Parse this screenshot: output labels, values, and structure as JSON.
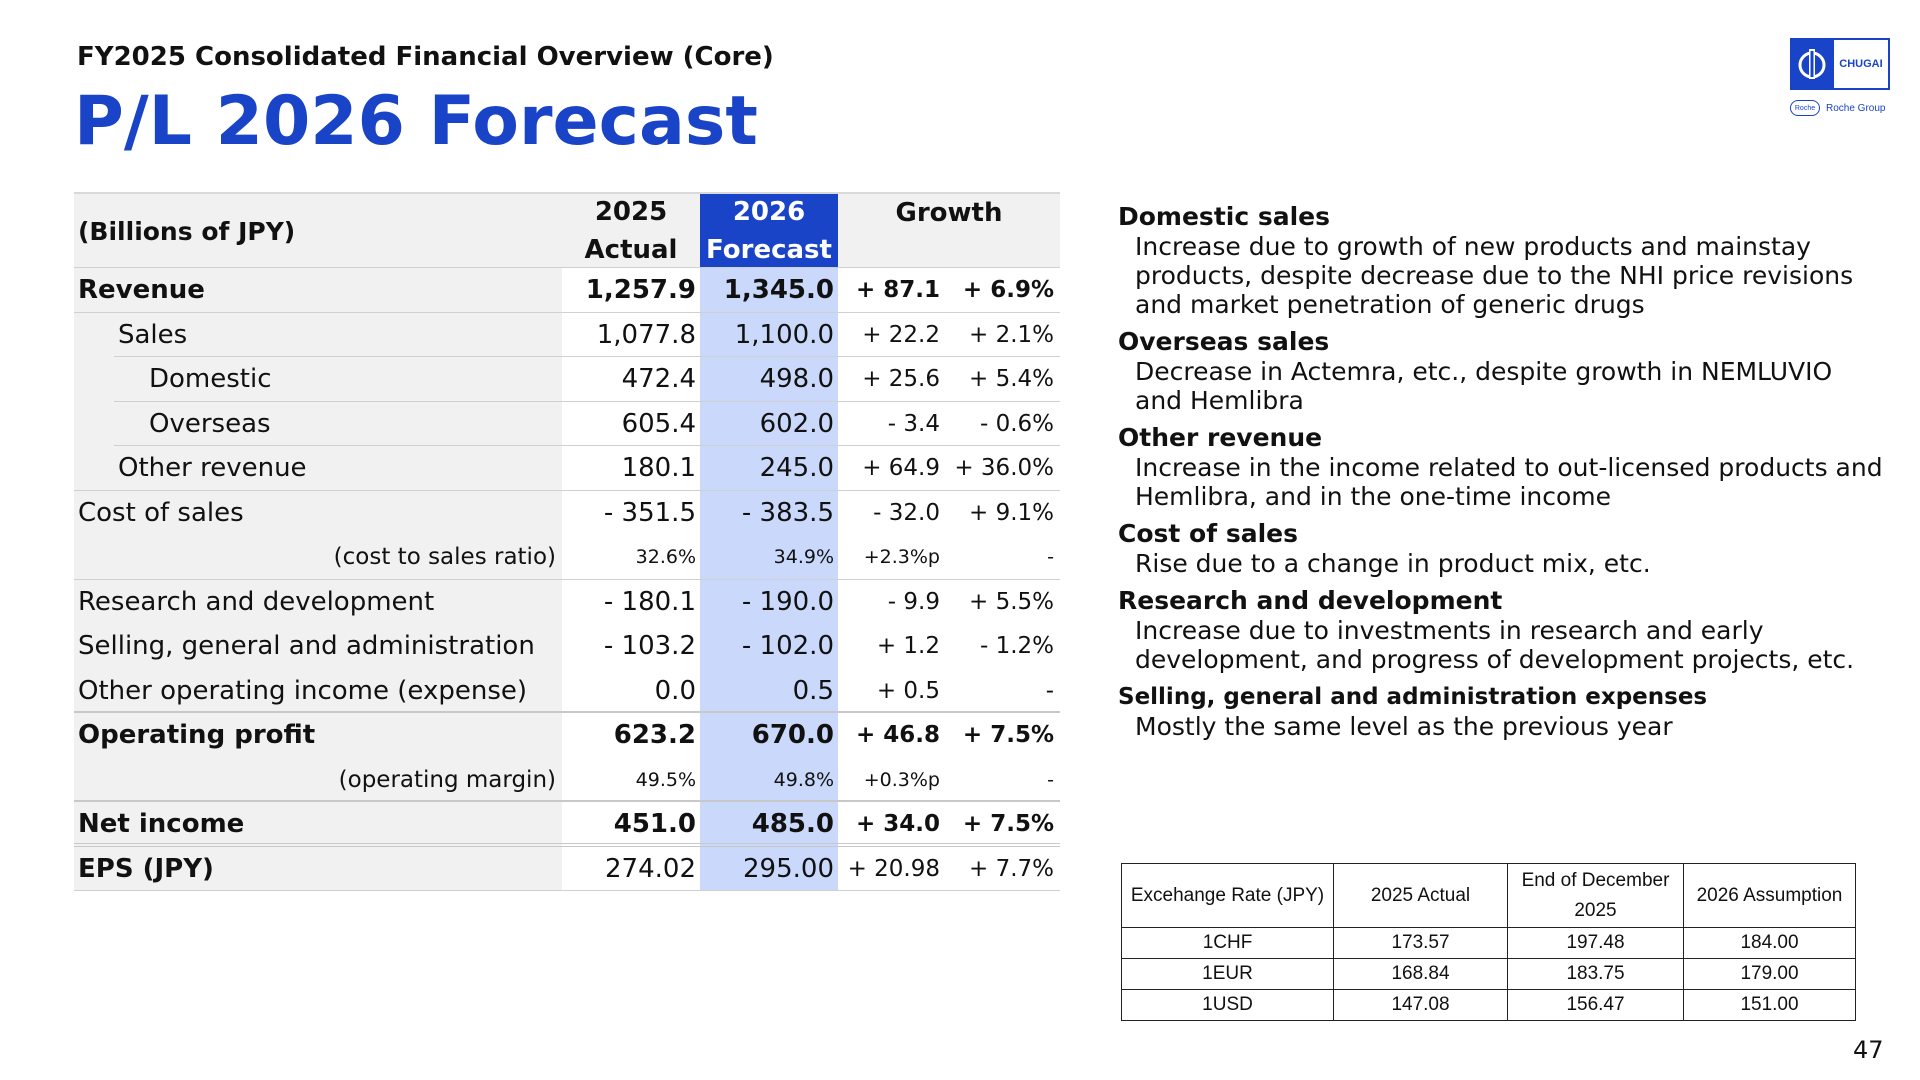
{
  "header": {
    "subtitle": "FY2025 Consolidated Financial Overview (Core)",
    "title": "P/L 2026 Forecast"
  },
  "logo": {
    "brand": "CHUGAI",
    "roche_mark": "Roche",
    "group": "Roche Group",
    "color": "#1a44c8"
  },
  "pl_table": {
    "unit_label": "(Billions of JPY)",
    "col_actual_line1": "2025",
    "col_actual_line2": "Actual",
    "col_forecast_line1": "2026",
    "col_forecast_line2": "Forecast",
    "col_growth": "Growth",
    "rows": [
      {
        "label": "Revenue",
        "actual": "1,257.9",
        "forecast": "1,345.0",
        "growth_abs": "+ 87.1",
        "growth_pct": "+ 6.9%"
      },
      {
        "label": "Sales",
        "actual": "1,077.8",
        "forecast": "1,100.0",
        "growth_abs": "+ 22.2",
        "growth_pct": "+ 2.1%"
      },
      {
        "label": "Domestic",
        "actual": "472.4",
        "forecast": "498.0",
        "growth_abs": "+ 25.6",
        "growth_pct": "+ 5.4%"
      },
      {
        "label": "Overseas",
        "actual": "605.4",
        "forecast": "602.0",
        "growth_abs": "- 3.4",
        "growth_pct": "- 0.6%"
      },
      {
        "label": "Other revenue",
        "actual": "180.1",
        "forecast": "245.0",
        "growth_abs": "+ 64.9",
        "growth_pct": "+ 36.0%"
      },
      {
        "label": "Cost of sales",
        "actual": "- 351.5",
        "forecast": "- 383.5",
        "growth_abs": "- 32.0",
        "growth_pct": "+ 9.1%"
      },
      {
        "label": "(cost to sales ratio)",
        "actual": "32.6%",
        "forecast": "34.9%",
        "growth_abs": "+2.3%p",
        "growth_pct": "-"
      },
      {
        "label": "Research and development",
        "actual": "- 180.1",
        "forecast": "- 190.0",
        "growth_abs": "- 9.9",
        "growth_pct": "+ 5.5%"
      },
      {
        "label": "Selling, general and administration",
        "actual": "- 103.2",
        "forecast": "- 102.0",
        "growth_abs": "+ 1.2",
        "growth_pct": "- 1.2%"
      },
      {
        "label": "Other operating income (expense)",
        "actual": "0.0",
        "forecast": "0.5",
        "growth_abs": "+ 0.5",
        "growth_pct": "-"
      },
      {
        "label": "Operating profit",
        "actual": "623.2",
        "forecast": "670.0",
        "growth_abs": "+ 46.8",
        "growth_pct": "+ 7.5%"
      },
      {
        "label": "(operating margin)",
        "actual": "49.5%",
        "forecast": "49.8%",
        "growth_abs": "+0.3%p",
        "growth_pct": "-"
      },
      {
        "label": "Net income",
        "actual": "451.0",
        "forecast": "485.0",
        "growth_abs": "+ 34.0",
        "growth_pct": "+ 7.5%"
      },
      {
        "label": "EPS (JPY)",
        "actual": "274.02",
        "forecast": "295.00",
        "growth_abs": "+ 20.98",
        "growth_pct": "+ 7.7%"
      }
    ]
  },
  "notes": [
    {
      "heading": "Domestic sales",
      "lines": [
        "Increase due to growth of new products and mainstay",
        "products, despite decrease due to the NHI price revisions",
        "and market penetration of generic drugs"
      ]
    },
    {
      "heading": "Overseas sales",
      "lines": [
        "Decrease in Actemra, etc., despite growth in NEMLUVIO",
        "and Hemlibra"
      ]
    },
    {
      "heading": "Other revenue",
      "lines": [
        "Increase in the income related to out-licensed products and",
        "Hemlibra, and in the one-time income"
      ]
    },
    {
      "heading": "Cost of sales",
      "lines": [
        "Rise due to a change in product mix, etc."
      ]
    },
    {
      "heading": "Research and development",
      "lines": [
        "Increase due to investments in research and early",
        "development, and progress of development projects, etc."
      ]
    },
    {
      "heading": "Selling, general and administration expenses",
      "lines": [
        "Mostly the same level as the previous year"
      ]
    }
  ],
  "fx_table": {
    "header": [
      "Excehange Rate (JPY)",
      "2025 Actual",
      "End of December",
      "2025",
      "2026 Assumption"
    ],
    "rows": [
      [
        "1CHF",
        "173.57",
        "197.48",
        "184.00"
      ],
      [
        "1EUR",
        "168.84",
        "183.75",
        "179.00"
      ],
      [
        "1USD",
        "147.08",
        "156.47",
        "151.00"
      ]
    ]
  },
  "page_number": "47"
}
